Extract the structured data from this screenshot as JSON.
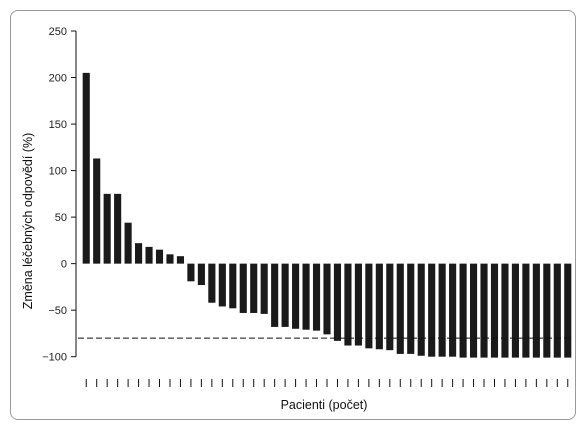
{
  "chart_data": {
    "type": "bar",
    "title": "",
    "xlabel": "Pacienti (počet)",
    "ylabel": "Změna léčebných odpovědí (%)",
    "ylim": [
      -110,
      250
    ],
    "yticks": [
      250,
      200,
      150,
      100,
      50,
      0,
      -50,
      -100
    ],
    "reference_line": -80,
    "bar_color": "#1a1a1a",
    "values": [
      205,
      113,
      75,
      75,
      44,
      22,
      18,
      15,
      10,
      8,
      -19,
      -23,
      -42,
      -46,
      -48,
      -53,
      -53,
      -54,
      -68,
      -68,
      -70,
      -71,
      -72,
      -76,
      -83,
      -88,
      -88,
      -91,
      -92,
      -93,
      -97,
      -97,
      -99,
      -100,
      -100,
      -100,
      -101,
      -101,
      -101,
      -101,
      -101,
      -101,
      -101,
      -101,
      -101,
      -101,
      -101
    ]
  }
}
